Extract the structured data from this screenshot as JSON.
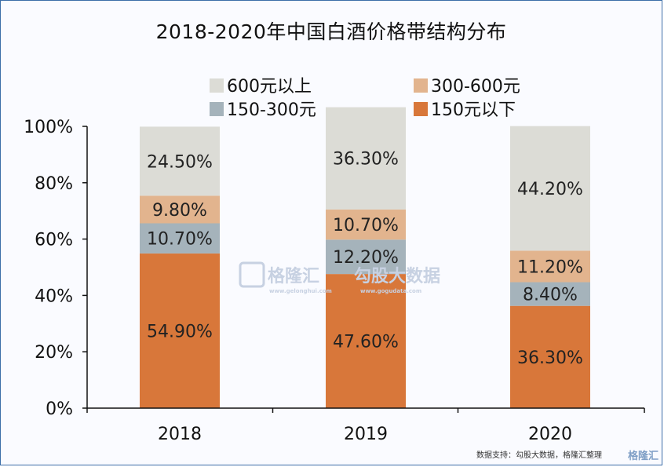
{
  "title": "2018-2020年中国白酒价格带结构分布",
  "source_note": "数据支持：勾股大数据，格隆汇整理",
  "watermark": {
    "brand": "格隆汇",
    "brand_url": "www.gelonghui.com",
    "data_brand": "勾股大数据",
    "data_url": "www.gogudata.com"
  },
  "colors": {
    "600元以上": "#dcdcd6",
    "300-600元": "#e2b48e",
    "150-300元": "#a5b3bb",
    "150元以下": "#d8773a",
    "axis": "#111111"
  },
  "chart_data": {
    "type": "bar",
    "stacked": true,
    "title": "2018-2020年中国白酒价格带结构分布",
    "categories": [
      "2018",
      "2019",
      "2020"
    ],
    "series": [
      {
        "name": "150元以下",
        "values": [
          54.9,
          47.6,
          36.3
        ],
        "labels": [
          "54.90%",
          "47.60%",
          "36.30%"
        ]
      },
      {
        "name": "150-300元",
        "values": [
          10.7,
          12.2,
          8.4
        ],
        "labels": [
          "10.70%",
          "12.20%",
          "8.40%"
        ]
      },
      {
        "name": "300-600元",
        "values": [
          9.8,
          10.7,
          11.2
        ],
        "labels": [
          "9.80%",
          "10.70%",
          "11.20%"
        ]
      },
      {
        "name": "600元以上",
        "values": [
          24.5,
          36.3,
          44.2
        ],
        "labels": [
          "24.50%",
          "36.30%",
          "44.20%"
        ]
      }
    ],
    "yticks": [
      "0%",
      "20%",
      "40%",
      "60%",
      "80%",
      "100%"
    ],
    "ylim": [
      0,
      100
    ],
    "grid": false,
    "legend": {
      "position": "top",
      "entries": [
        "600元以上",
        "300-600元",
        "150-300元",
        "150元以下"
      ]
    }
  }
}
